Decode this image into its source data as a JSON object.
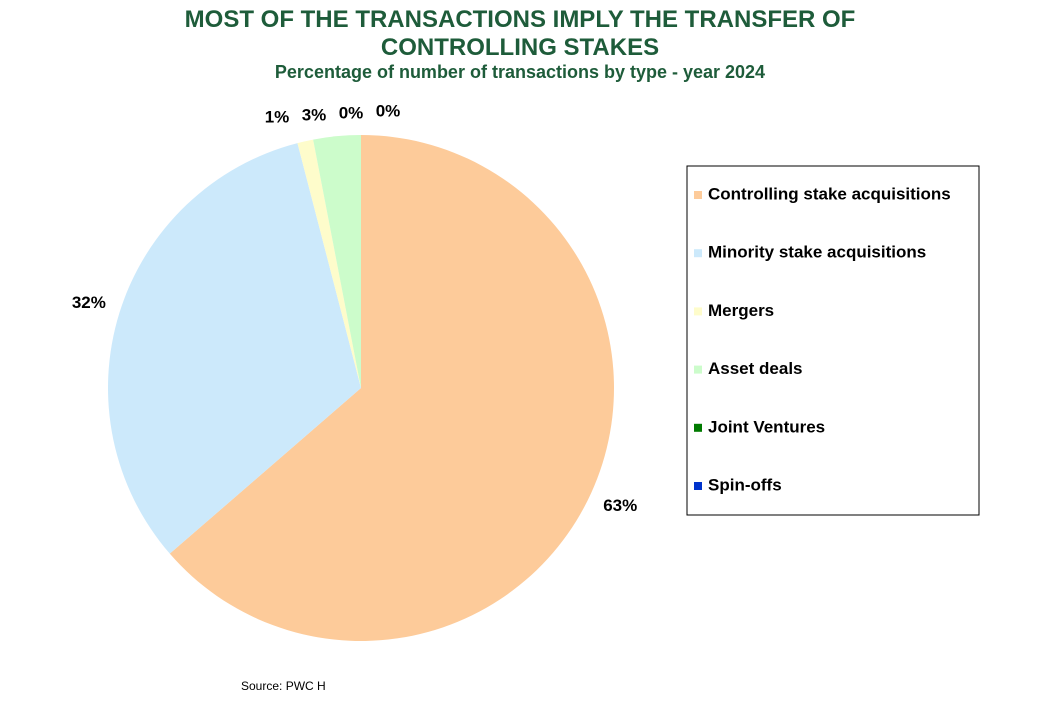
{
  "chart_data": {
    "type": "pie",
    "title": "MOST OF THE TRANSACTIONS IMPLY THE TRANSFER OF CONTROLLING STAKES",
    "subtitle": "Percentage of number of transactions by type - year 2024",
    "categories": [
      "Controlling stake acquisitions",
      "Minority stake acquisitions",
      "Mergers",
      "Asset deals",
      "Joint Ventures",
      "Spin-offs"
    ],
    "values": [
      63,
      32,
      1,
      3,
      0,
      0
    ],
    "value_labels": [
      "63%",
      "32%",
      "1%",
      "3%",
      "0%",
      "0%"
    ],
    "colors": [
      "#fdcb9a",
      "#cce9fb",
      "#fefccb",
      "#ccfccb",
      "#007a00",
      "#0033cc"
    ],
    "legend": "right",
    "source": "Source: PWC H"
  }
}
